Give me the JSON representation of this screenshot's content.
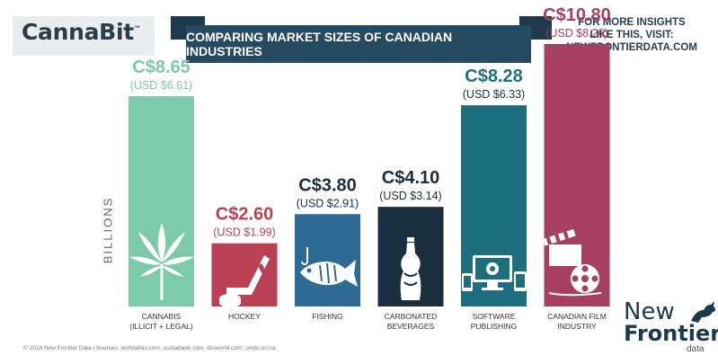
{
  "brand": {
    "name": "CannaBit",
    "tm": "™"
  },
  "header": {
    "title": "COMPARING MARKET SIZES OF CANADIAN INDUSTRIES",
    "insights_line1": "FOR MORE INSIGHTS",
    "insights_line2": "LIKE THIS, VISIT:",
    "insights_line3": "NEWFRONTIERDATA.COM"
  },
  "chart_data": {
    "type": "bar",
    "ylabel": "BILLIONS",
    "ylim": [
      0,
      10.8
    ],
    "grid": false,
    "categories": [
      {
        "line1": "CANNABIS",
        "line2": "(ILLICIT + LEGAL)"
      },
      {
        "line1": "HOCKEY",
        "line2": ""
      },
      {
        "line1": "FISHING",
        "line2": ""
      },
      {
        "line1": "CARBONATED",
        "line2": "BEVERAGES"
      },
      {
        "line1": "SOFTWARE",
        "line2": "PUBLISHING"
      },
      {
        "line1": "CANADIAN FILM",
        "line2": "INDUSTRY"
      }
    ],
    "series": [
      {
        "values": [
          8.65,
          2.6,
          3.8,
          4.1,
          8.28,
          10.8
        ]
      }
    ],
    "usd_values": [
      6.61,
      1.99,
      2.91,
      3.14,
      6.33,
      8.26
    ],
    "value_labels": [
      "C$8.65",
      "C$2.60",
      "C$3.80",
      "C$4.10",
      "C$8.28",
      "C$10.80"
    ],
    "usd_labels": [
      "(USD $6.61)",
      "(USD $1.99)",
      "(USD $2.91)",
      "(USD $3.14)",
      "(USD $6.33)",
      "(USD $8.26)"
    ],
    "colors": [
      "#7cc9ac",
      "#b94153",
      "#2d6b94",
      "#1a2f3e",
      "#1e6f7e",
      "#a63f62"
    ],
    "icons": [
      "cannabis-leaf-icon",
      "hockey-stick-icon",
      "fish-icon",
      "soda-bottle-icon",
      "devices-gear-icon",
      "film-clapper-icon"
    ]
  },
  "footer": {
    "note": "© 2018 New Frontier Data | Sources: worldatlas.com, scotiabank.com, ibisworld.com, omdc.on.ca",
    "logo_line1": "New",
    "logo_line2": "Frontier",
    "logo_line3": "data"
  }
}
